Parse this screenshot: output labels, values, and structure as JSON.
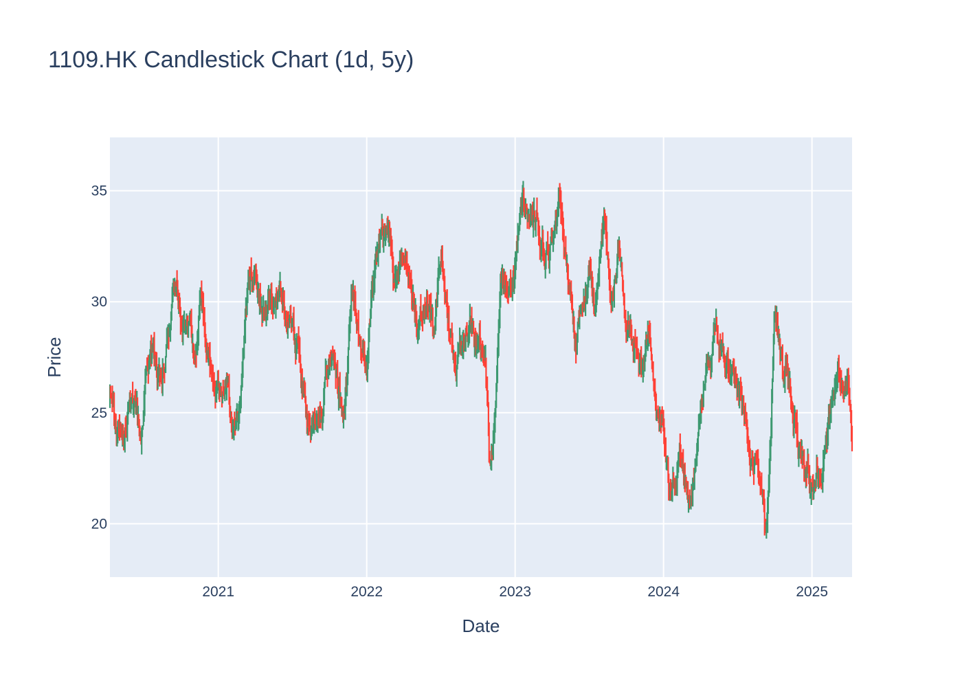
{
  "chart_data": {
    "type": "candlestick",
    "title": "1109.HK Candlestick Chart (1d, 5y)",
    "xlabel": "Date",
    "ylabel": "Price",
    "x_range": [
      2020.27,
      2025.27
    ],
    "ylim": [
      17.6,
      37.4
    ],
    "x_ticks": [
      {
        "value": 2021,
        "label": "2021"
      },
      {
        "value": 2022,
        "label": "2022"
      },
      {
        "value": 2023,
        "label": "2023"
      },
      {
        "value": 2024,
        "label": "2024"
      },
      {
        "value": 2025,
        "label": "2025"
      }
    ],
    "y_ticks": [
      {
        "value": 20,
        "label": "20"
      },
      {
        "value": 25,
        "label": "25"
      },
      {
        "value": 30,
        "label": "30"
      },
      {
        "value": 35,
        "label": "35"
      }
    ],
    "increasing_color": "#3D9970",
    "decreasing_color": "#FF4136",
    "grid": true,
    "price_path": [
      [
        2020.27,
        25.5
      ],
      [
        2020.3,
        24.3
      ],
      [
        2020.33,
        24.0
      ],
      [
        2020.36,
        22.8
      ],
      [
        2020.4,
        25.0
      ],
      [
        2020.45,
        25.2
      ],
      [
        2020.48,
        24.6
      ],
      [
        2020.52,
        28.0
      ],
      [
        2020.55,
        27.5
      ],
      [
        2020.6,
        26.5
      ],
      [
        2020.65,
        28.0
      ],
      [
        2020.7,
        30.5
      ],
      [
        2020.75,
        28.5
      ],
      [
        2020.8,
        29.0
      ],
      [
        2020.85,
        27.5
      ],
      [
        2020.88,
        30.5
      ],
      [
        2020.92,
        28.5
      ],
      [
        2020.96,
        26.0
      ],
      [
        2021.0,
        25.5
      ],
      [
        2021.05,
        26.5
      ],
      [
        2021.1,
        25.0
      ],
      [
        2021.15,
        26.5
      ],
      [
        2021.2,
        30.5
      ],
      [
        2021.25,
        31.5
      ],
      [
        2021.3,
        30.0
      ],
      [
        2021.35,
        30.5
      ],
      [
        2021.4,
        30.0
      ],
      [
        2021.45,
        29.5
      ],
      [
        2021.5,
        29.5
      ],
      [
        2021.55,
        27.0
      ],
      [
        2021.6,
        24.0
      ],
      [
        2021.65,
        23.5
      ],
      [
        2021.7,
        25.0
      ],
      [
        2021.75,
        27.5
      ],
      [
        2021.8,
        27.0
      ],
      [
        2021.85,
        24.5
      ],
      [
        2021.9,
        29.5
      ],
      [
        2021.95,
        28.5
      ],
      [
        2022.0,
        28.0
      ],
      [
        2022.05,
        30.5
      ],
      [
        2022.1,
        33.5
      ],
      [
        2022.15,
        33.0
      ],
      [
        2022.2,
        31.0
      ],
      [
        2022.25,
        32.0
      ],
      [
        2022.3,
        30.5
      ],
      [
        2022.35,
        29.0
      ],
      [
        2022.4,
        30.0
      ],
      [
        2022.45,
        28.5
      ],
      [
        2022.5,
        32.5
      ],
      [
        2022.55,
        29.5
      ],
      [
        2022.6,
        27.0
      ],
      [
        2022.65,
        28.0
      ],
      [
        2022.7,
        29.5
      ],
      [
        2022.75,
        28.0
      ],
      [
        2022.8,
        27.5
      ],
      [
        2022.83,
        22.5
      ],
      [
        2022.87,
        25.5
      ],
      [
        2022.9,
        30.5
      ],
      [
        2022.95,
        30.5
      ],
      [
        2023.0,
        31.5
      ],
      [
        2023.05,
        35.0
      ],
      [
        2023.1,
        33.5
      ],
      [
        2023.15,
        33.5
      ],
      [
        2023.2,
        32.0
      ],
      [
        2023.25,
        32.5
      ],
      [
        2023.3,
        33.5
      ],
      [
        2023.35,
        31.0
      ],
      [
        2023.4,
        27.5
      ],
      [
        2023.45,
        30.0
      ],
      [
        2023.5,
        31.5
      ],
      [
        2023.55,
        29.5
      ],
      [
        2023.6,
        33.0
      ],
      [
        2023.65,
        30.0
      ],
      [
        2023.7,
        32.5
      ],
      [
        2023.75,
        29.5
      ],
      [
        2023.8,
        28.5
      ],
      [
        2023.85,
        27.5
      ],
      [
        2023.9,
        28.5
      ],
      [
        2023.95,
        25.5
      ],
      [
        2024.0,
        25.0
      ],
      [
        2024.04,
        21.5
      ],
      [
        2024.08,
        22.5
      ],
      [
        2024.12,
        23.5
      ],
      [
        2024.17,
        21.5
      ],
      [
        2024.22,
        23.0
      ],
      [
        2024.28,
        26.5
      ],
      [
        2024.35,
        29.5
      ],
      [
        2024.4,
        27.5
      ],
      [
        2024.45,
        27.0
      ],
      [
        2024.5,
        26.5
      ],
      [
        2024.55,
        25.0
      ],
      [
        2024.6,
        22.5
      ],
      [
        2024.65,
        21.0
      ],
      [
        2024.69,
        19.2
      ],
      [
        2024.72,
        23.0
      ],
      [
        2024.75,
        29.0
      ],
      [
        2024.8,
        26.5
      ],
      [
        2024.85,
        26.0
      ],
      [
        2024.9,
        23.5
      ],
      [
        2024.95,
        23.0
      ],
      [
        2025.0,
        22.5
      ],
      [
        2025.05,
        23.0
      ],
      [
        2025.1,
        24.0
      ],
      [
        2025.15,
        25.8
      ],
      [
        2025.2,
        26.0
      ],
      [
        2025.25,
        25.5
      ],
      [
        2025.27,
        23.0
      ]
    ]
  }
}
